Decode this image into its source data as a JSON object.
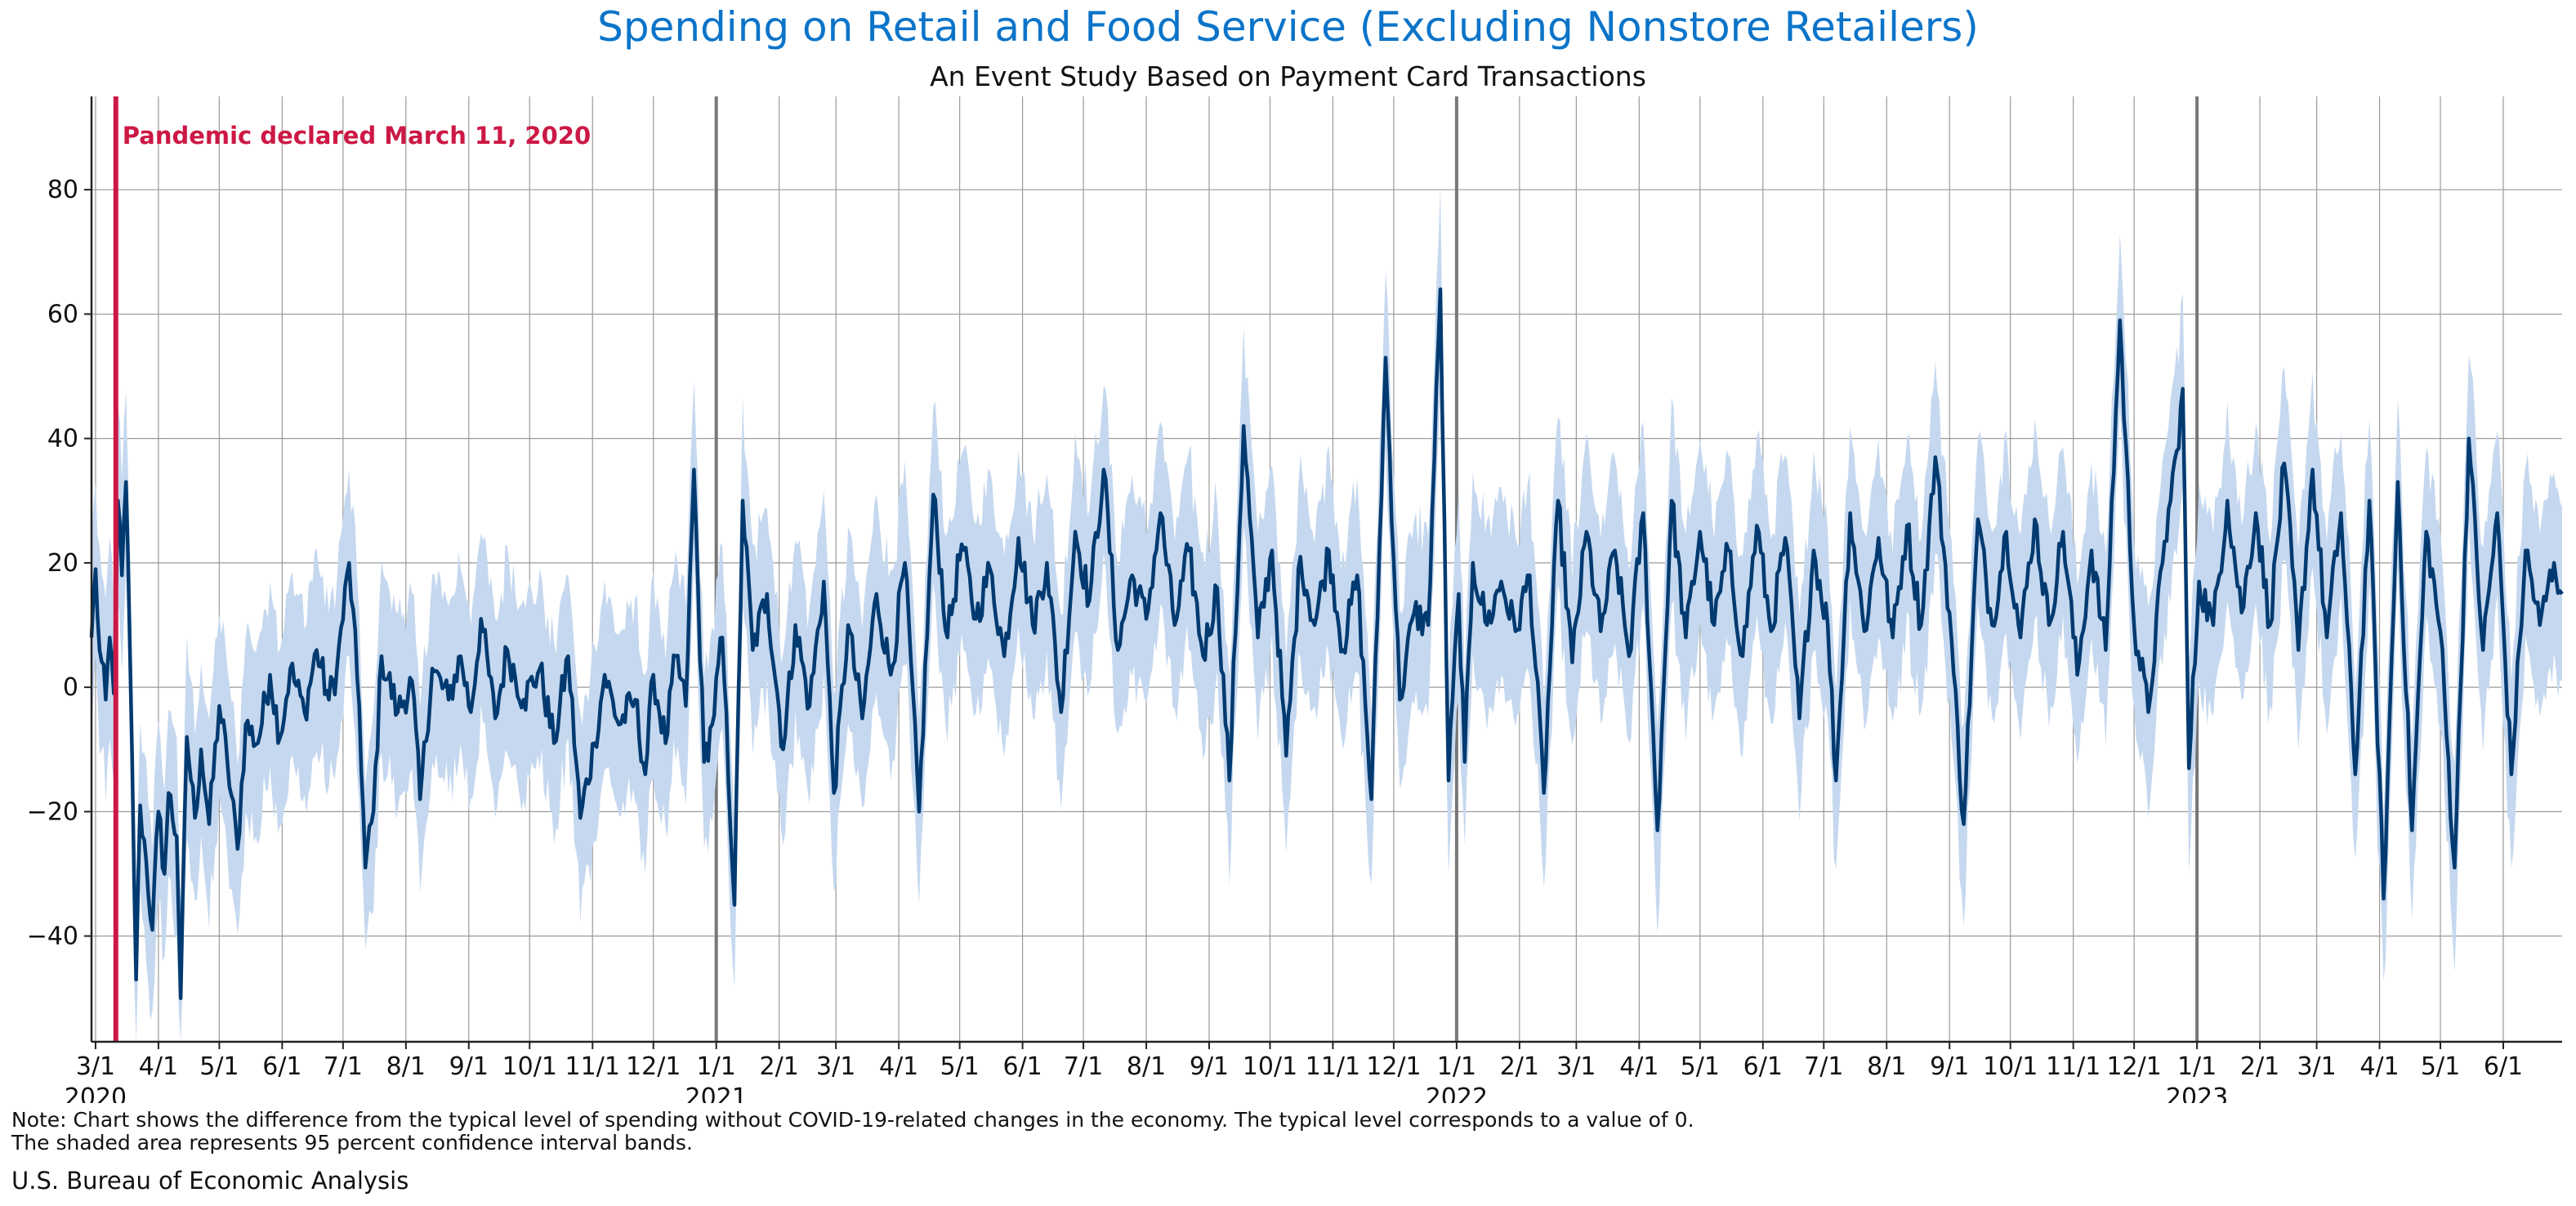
{
  "title": "Spending on Retail and Food Service (Excluding Nonstore Retailers)",
  "subtitle": "An Event Study Based on Payment Card Transactions",
  "note_line1": "Note: Chart shows the difference from the typical level of spending without COVID-19-related changes in the economy. The typical level corresponds to a value of 0.",
  "note_line2": "The shaded area represents 95 percent confidence interval bands.",
  "source": "U.S. Bureau of Economic Analysis",
  "colors": {
    "line": "#003a70",
    "band": "#c5d8ef",
    "event": "#cc1845",
    "title": "#0b74c9",
    "grid": "#9a9a9a",
    "yearline": "#777777"
  },
  "chart_data": {
    "type": "line",
    "x_unit": "date",
    "x_range": [
      "2020-02-28",
      "2023-06-30"
    ],
    "ylim": [
      -57,
      95
    ],
    "yticks": [
      -40,
      -20,
      0,
      20,
      40,
      60,
      80
    ],
    "grid": true,
    "event": {
      "date": "2020-03-11",
      "label": "Pandemic declared March 11, 2020"
    },
    "x_month_ticks": [
      "2020-03-01",
      "2020-04-01",
      "2020-05-01",
      "2020-06-01",
      "2020-07-01",
      "2020-08-01",
      "2020-09-01",
      "2020-10-01",
      "2020-11-01",
      "2020-12-01",
      "2021-01-01",
      "2021-02-01",
      "2021-03-01",
      "2021-04-01",
      "2021-05-01",
      "2021-06-01",
      "2021-07-01",
      "2021-08-01",
      "2021-09-01",
      "2021-10-01",
      "2021-11-01",
      "2021-12-01",
      "2022-01-01",
      "2022-02-01",
      "2022-03-01",
      "2022-04-01",
      "2022-05-01",
      "2022-06-01",
      "2022-07-01",
      "2022-08-01",
      "2022-09-01",
      "2022-10-01",
      "2022-11-01",
      "2022-12-01",
      "2023-01-01",
      "2023-02-01",
      "2023-03-01",
      "2023-04-01",
      "2023-05-01",
      "2023-06-01"
    ],
    "x_tick_labels": [
      "3/1",
      "4/1",
      "5/1",
      "6/1",
      "7/1",
      "8/1",
      "9/1",
      "10/1",
      "11/1",
      "12/1",
      "1/1",
      "2/1",
      "3/1",
      "4/1",
      "5/1",
      "6/1",
      "7/1",
      "8/1",
      "9/1",
      "10/1",
      "11/1",
      "12/1",
      "1/1",
      "2/1",
      "3/1",
      "4/1",
      "5/1",
      "6/1",
      "7/1",
      "8/1",
      "9/1",
      "10/1",
      "11/1",
      "12/1",
      "1/1",
      "2/1",
      "3/1",
      "4/1",
      "5/1",
      "6/1"
    ],
    "x_year_labels": [
      {
        "date": "2020-03-01",
        "label": "2020"
      },
      {
        "date": "2021-01-01",
        "label": "2021"
      },
      {
        "date": "2022-01-01",
        "label": "2022"
      },
      {
        "date": "2023-01-01",
        "label": "2023"
      }
    ],
    "band_half_width": 13,
    "series": [
      {
        "points": [
          [
            "2020-02-28",
            8
          ],
          [
            "2020-03-01",
            19
          ],
          [
            "2020-03-03",
            6
          ],
          [
            "2020-03-06",
            -2
          ],
          [
            "2020-03-08",
            8
          ],
          [
            "2020-03-10",
            -1
          ],
          [
            "2020-03-12",
            30
          ],
          [
            "2020-03-14",
            18
          ],
          [
            "2020-03-16",
            33
          ],
          [
            "2020-03-18",
            5
          ],
          [
            "2020-03-21",
            -47
          ],
          [
            "2020-03-23",
            -19
          ],
          [
            "2020-03-26",
            -28
          ],
          [
            "2020-03-29",
            -39
          ],
          [
            "2020-04-01",
            -20
          ],
          [
            "2020-04-04",
            -30
          ],
          [
            "2020-04-06",
            -17
          ],
          [
            "2020-04-10",
            -24
          ],
          [
            "2020-04-12",
            -50
          ],
          [
            "2020-04-15",
            -8
          ],
          [
            "2020-04-19",
            -21
          ],
          [
            "2020-04-22",
            -10
          ],
          [
            "2020-04-26",
            -22
          ],
          [
            "2020-05-01",
            -3
          ],
          [
            "2020-05-05",
            -12
          ],
          [
            "2020-05-10",
            -26
          ],
          [
            "2020-05-14",
            -6
          ],
          [
            "2020-05-20",
            -9
          ],
          [
            "2020-05-26",
            2
          ],
          [
            "2020-05-31",
            -8
          ],
          [
            "2020-06-05",
            3
          ],
          [
            "2020-06-12",
            -4
          ],
          [
            "2020-06-18",
            6
          ],
          [
            "2020-06-24",
            -2
          ],
          [
            "2020-06-28",
            3
          ],
          [
            "2020-07-04",
            20
          ],
          [
            "2020-07-09",
            -3
          ],
          [
            "2020-07-12",
            -29
          ],
          [
            "2020-07-16",
            -20
          ],
          [
            "2020-07-20",
            5
          ],
          [
            "2020-07-28",
            -4
          ],
          [
            "2020-08-04",
            1
          ],
          [
            "2020-08-08",
            -18
          ],
          [
            "2020-08-14",
            3
          ],
          [
            "2020-08-22",
            -2
          ],
          [
            "2020-08-28",
            5
          ],
          [
            "2020-09-02",
            -4
          ],
          [
            "2020-09-07",
            11
          ],
          [
            "2020-09-14",
            -5
          ],
          [
            "2020-09-20",
            6
          ],
          [
            "2020-09-28",
            -2
          ],
          [
            "2020-10-06",
            3
          ],
          [
            "2020-10-13",
            -9
          ],
          [
            "2020-10-20",
            5
          ],
          [
            "2020-10-26",
            -21
          ],
          [
            "2020-11-02",
            -9
          ],
          [
            "2020-11-07",
            2
          ],
          [
            "2020-11-14",
            -6
          ],
          [
            "2020-11-22",
            -2
          ],
          [
            "2020-11-27",
            -14
          ],
          [
            "2020-12-01",
            2
          ],
          [
            "2020-12-07",
            -9
          ],
          [
            "2020-12-12",
            5
          ],
          [
            "2020-12-17",
            -3
          ],
          [
            "2020-12-21",
            35
          ],
          [
            "2020-12-26",
            -12
          ],
          [
            "2020-12-30",
            -6
          ],
          [
            "2021-01-04",
            8
          ],
          [
            "2021-01-10",
            -35
          ],
          [
            "2021-01-14",
            30
          ],
          [
            "2021-01-19",
            6
          ],
          [
            "2021-01-26",
            15
          ],
          [
            "2021-02-03",
            -10
          ],
          [
            "2021-02-09",
            10
          ],
          [
            "2021-02-16",
            -3
          ],
          [
            "2021-02-23",
            17
          ],
          [
            "2021-02-28",
            -17
          ],
          [
            "2021-03-07",
            10
          ],
          [
            "2021-03-14",
            -5
          ],
          [
            "2021-03-21",
            15
          ],
          [
            "2021-03-28",
            2
          ],
          [
            "2021-04-04",
            20
          ],
          [
            "2021-04-11",
            -20
          ],
          [
            "2021-04-18",
            31
          ],
          [
            "2021-04-25",
            8
          ],
          [
            "2021-05-02",
            23
          ],
          [
            "2021-05-09",
            11
          ],
          [
            "2021-05-16",
            19
          ],
          [
            "2021-05-23",
            5
          ],
          [
            "2021-05-30",
            24
          ],
          [
            "2021-06-06",
            10
          ],
          [
            "2021-06-13",
            20
          ],
          [
            "2021-06-20",
            -4
          ],
          [
            "2021-06-27",
            25
          ],
          [
            "2021-07-04",
            14
          ],
          [
            "2021-07-11",
            35
          ],
          [
            "2021-07-18",
            6
          ],
          [
            "2021-07-25",
            18
          ],
          [
            "2021-08-01",
            11
          ],
          [
            "2021-08-08",
            28
          ],
          [
            "2021-08-15",
            10
          ],
          [
            "2021-08-22",
            22
          ],
          [
            "2021-08-29",
            5
          ],
          [
            "2021-09-05",
            16
          ],
          [
            "2021-09-11",
            -15
          ],
          [
            "2021-09-18",
            42
          ],
          [
            "2021-09-25",
            8
          ],
          [
            "2021-10-02",
            22
          ],
          [
            "2021-10-09",
            -11
          ],
          [
            "2021-10-16",
            21
          ],
          [
            "2021-10-23",
            10
          ],
          [
            "2021-10-30",
            22
          ],
          [
            "2021-11-06",
            6
          ],
          [
            "2021-11-13",
            18
          ],
          [
            "2021-11-20",
            -18
          ],
          [
            "2021-11-27",
            53
          ],
          [
            "2021-12-04",
            -2
          ],
          [
            "2021-12-11",
            12
          ],
          [
            "2021-12-18",
            10
          ],
          [
            "2021-12-24",
            64
          ],
          [
            "2021-12-28",
            -15
          ],
          [
            "2022-01-02",
            15
          ],
          [
            "2022-01-05",
            -12
          ],
          [
            "2022-01-09",
            20
          ],
          [
            "2022-01-16",
            10
          ],
          [
            "2022-01-23",
            17
          ],
          [
            "2022-01-30",
            9
          ],
          [
            "2022-02-06",
            18
          ],
          [
            "2022-02-13",
            -17
          ],
          [
            "2022-02-20",
            30
          ],
          [
            "2022-02-27",
            4
          ],
          [
            "2022-03-06",
            25
          ],
          [
            "2022-03-13",
            9
          ],
          [
            "2022-03-20",
            22
          ],
          [
            "2022-03-27",
            5
          ],
          [
            "2022-04-03",
            28
          ],
          [
            "2022-04-10",
            -23
          ],
          [
            "2022-04-17",
            30
          ],
          [
            "2022-04-24",
            8
          ],
          [
            "2022-05-01",
            25
          ],
          [
            "2022-05-08",
            10
          ],
          [
            "2022-05-15",
            22
          ],
          [
            "2022-05-22",
            5
          ],
          [
            "2022-05-29",
            26
          ],
          [
            "2022-06-05",
            9
          ],
          [
            "2022-06-12",
            24
          ],
          [
            "2022-06-19",
            -5
          ],
          [
            "2022-06-26",
            22
          ],
          [
            "2022-07-03",
            10
          ],
          [
            "2022-07-07",
            -15
          ],
          [
            "2022-07-14",
            28
          ],
          [
            "2022-07-21",
            9
          ],
          [
            "2022-07-28",
            24
          ],
          [
            "2022-08-04",
            8
          ],
          [
            "2022-08-11",
            26
          ],
          [
            "2022-08-18",
            10
          ],
          [
            "2022-08-25",
            37
          ],
          [
            "2022-09-01",
            12
          ],
          [
            "2022-09-08",
            -22
          ],
          [
            "2022-09-15",
            27
          ],
          [
            "2022-09-22",
            10
          ],
          [
            "2022-09-29",
            25
          ],
          [
            "2022-10-06",
            8
          ],
          [
            "2022-10-13",
            27
          ],
          [
            "2022-10-20",
            10
          ],
          [
            "2022-10-27",
            25
          ],
          [
            "2022-11-03",
            2
          ],
          [
            "2022-11-10",
            22
          ],
          [
            "2022-11-17",
            6
          ],
          [
            "2022-11-24",
            59
          ],
          [
            "2022-12-01",
            10
          ],
          [
            "2022-12-08",
            -4
          ],
          [
            "2022-12-15",
            20
          ],
          [
            "2022-12-22",
            38
          ],
          [
            "2022-12-25",
            48
          ],
          [
            "2022-12-28",
            -13
          ],
          [
            "2023-01-02",
            17
          ],
          [
            "2023-01-09",
            10
          ],
          [
            "2023-01-16",
            30
          ],
          [
            "2023-01-23",
            12
          ],
          [
            "2023-01-30",
            28
          ],
          [
            "2023-02-06",
            10
          ],
          [
            "2023-02-13",
            36
          ],
          [
            "2023-02-20",
            6
          ],
          [
            "2023-02-27",
            35
          ],
          [
            "2023-03-06",
            8
          ],
          [
            "2023-03-13",
            28
          ],
          [
            "2023-03-20",
            -14
          ],
          [
            "2023-03-27",
            30
          ],
          [
            "2023-04-03",
            -34
          ],
          [
            "2023-04-10",
            33
          ],
          [
            "2023-04-17",
            -23
          ],
          [
            "2023-04-24",
            25
          ],
          [
            "2023-05-01",
            9
          ],
          [
            "2023-05-08",
            -29
          ],
          [
            "2023-05-15",
            40
          ],
          [
            "2023-05-22",
            6
          ],
          [
            "2023-05-29",
            28
          ],
          [
            "2023-06-05",
            -14
          ],
          [
            "2023-06-12",
            22
          ],
          [
            "2023-06-19",
            10
          ],
          [
            "2023-06-26",
            20
          ],
          [
            "2023-06-30",
            15
          ]
        ]
      }
    ]
  }
}
